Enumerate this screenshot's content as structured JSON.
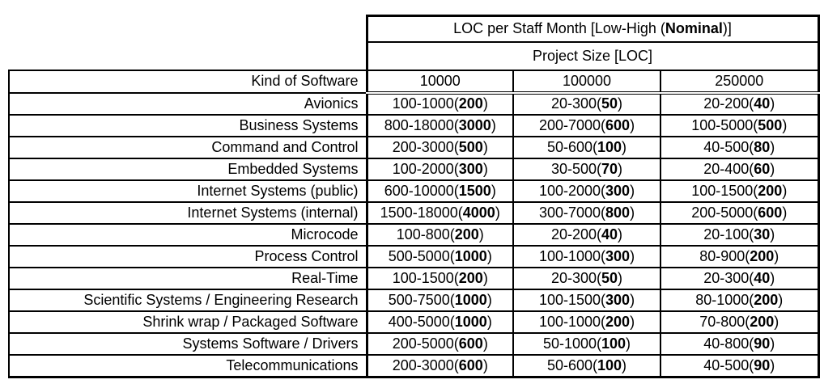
{
  "colors": {
    "background": "#ffffff",
    "text": "#000000",
    "border": "#000000"
  },
  "table": {
    "title": {
      "pre": "LOC per Staff Month [Low-High (",
      "bold": "Nominal",
      "post": ")]"
    },
    "subtitle": "Project Size [LOC]",
    "corner_label": "Kind of Software",
    "columns": [
      "10000",
      "100000",
      "250000"
    ],
    "rows": [
      {
        "label": "Avionics",
        "values": [
          {
            "range": "100-1000",
            "nominal": "200"
          },
          {
            "range": "20-300",
            "nominal": "50"
          },
          {
            "range": "20-200",
            "nominal": "40"
          }
        ]
      },
      {
        "label": "Business Systems",
        "values": [
          {
            "range": "800-18000",
            "nominal": "3000"
          },
          {
            "range": "200-7000",
            "nominal": "600"
          },
          {
            "range": "100-5000",
            "nominal": "500"
          }
        ]
      },
      {
        "label": "Command and Control",
        "values": [
          {
            "range": "200-3000",
            "nominal": "500"
          },
          {
            "range": "50-600",
            "nominal": "100"
          },
          {
            "range": "40-500",
            "nominal": "80"
          }
        ]
      },
      {
        "label": "Embedded Systems",
        "values": [
          {
            "range": "100-2000",
            "nominal": "300"
          },
          {
            "range": "30-500",
            "nominal": "70"
          },
          {
            "range": "20-400",
            "nominal": "60"
          }
        ]
      },
      {
        "label": "Internet Systems (public)",
        "values": [
          {
            "range": "600-10000",
            "nominal": "1500"
          },
          {
            "range": "100-2000",
            "nominal": "300"
          },
          {
            "range": "100-1500",
            "nominal": "200"
          }
        ]
      },
      {
        "label": "Internet Systems (internal)",
        "values": [
          {
            "range": "1500-18000",
            "nominal": "4000"
          },
          {
            "range": "300-7000",
            "nominal": "800"
          },
          {
            "range": "200-5000",
            "nominal": "600"
          }
        ]
      },
      {
        "label": "Microcode",
        "values": [
          {
            "range": "100-800",
            "nominal": "200"
          },
          {
            "range": "20-200",
            "nominal": "40"
          },
          {
            "range": "20-100",
            "nominal": "30"
          }
        ]
      },
      {
        "label": "Process Control",
        "values": [
          {
            "range": "500-5000",
            "nominal": "1000"
          },
          {
            "range": "100-1000",
            "nominal": "300"
          },
          {
            "range": "80-900",
            "nominal": "200"
          }
        ]
      },
      {
        "label": "Real-Time",
        "values": [
          {
            "range": "100-1500",
            "nominal": "200"
          },
          {
            "range": "20-300",
            "nominal": "50"
          },
          {
            "range": "20-300",
            "nominal": "40"
          }
        ]
      },
      {
        "label": "Scientific Systems / Engineering Research",
        "values": [
          {
            "range": "500-7500",
            "nominal": "1000"
          },
          {
            "range": "100-1500",
            "nominal": "300"
          },
          {
            "range": "80-1000",
            "nominal": "200"
          }
        ]
      },
      {
        "label": "Shrink wrap / Packaged Software",
        "values": [
          {
            "range": "400-5000",
            "nominal": "1000"
          },
          {
            "range": "100-1000",
            "nominal": "200"
          },
          {
            "range": "70-800",
            "nominal": "200"
          }
        ]
      },
      {
        "label": "Systems Software / Drivers",
        "values": [
          {
            "range": "200-5000",
            "nominal": "600"
          },
          {
            "range": "50-1000",
            "nominal": "100"
          },
          {
            "range": "40-800",
            "nominal": "90"
          }
        ]
      },
      {
        "label": "Telecommunications",
        "values": [
          {
            "range": "200-3000",
            "nominal": "600"
          },
          {
            "range": "50-600",
            "nominal": "100"
          },
          {
            "range": "40-500",
            "nominal": "90"
          }
        ]
      }
    ]
  }
}
